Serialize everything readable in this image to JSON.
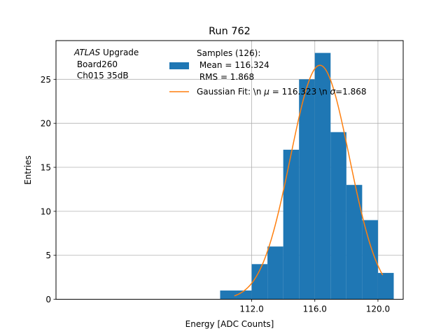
{
  "chart_data": {
    "type": "bar",
    "title": "Run 762",
    "xlabel": "Energy [ADC Counts]",
    "ylabel": "Entries",
    "xlim": [
      99.6,
      121.6
    ],
    "ylim": [
      0,
      29.4
    ],
    "xticks": [
      112,
      116,
      120
    ],
    "xtick_labels": [
      "112.0",
      "116.0",
      "120.0"
    ],
    "yticks": [
      0,
      5,
      10,
      15,
      20,
      25
    ],
    "grid": true,
    "histogram": {
      "name": "Samples (126):\n Mean = 116.324\n RMS = 1.868",
      "color": "#1f77b4",
      "bins": [
        {
          "x0": 110,
          "x1": 111,
          "count": 1
        },
        {
          "x0": 111,
          "x1": 112,
          "count": 1
        },
        {
          "x0": 112,
          "x1": 113,
          "count": 4
        },
        {
          "x0": 113,
          "x1": 114,
          "count": 6
        },
        {
          "x0": 114,
          "x1": 115,
          "count": 17
        },
        {
          "x0": 115,
          "x1": 116,
          "count": 25
        },
        {
          "x0": 116,
          "x1": 117,
          "count": 28
        },
        {
          "x0": 117,
          "x1": 118,
          "count": 19
        },
        {
          "x0": 118,
          "x1": 119,
          "count": 13
        },
        {
          "x0": 119,
          "x1": 120,
          "count": 9
        },
        {
          "x0": 120,
          "x1": 121,
          "count": 3
        }
      ]
    },
    "fit": {
      "name": "Gaussian Fit: \\n μ = 116.323 \\n σ=1.868",
      "color": "#ff7f0e",
      "mu": 116.323,
      "sigma": 1.868,
      "amplitude": 26.6,
      "x_range": [
        110.9,
        120.3
      ]
    },
    "annotation_lines": [
      "ATLAS Upgrade",
      " Board260",
      " Ch015 35dB"
    ],
    "legend": {
      "placement": "top-right",
      "hist_lines": [
        "Samples (126):",
        " Mean = 116.324",
        " RMS = 1.868"
      ],
      "fit_prefix": "Gaussian Fit: \\n ",
      "fit_mu": "μ",
      "fit_mid": " = 116.323 \\n ",
      "fit_sigma": "σ",
      "fit_suffix": "=1.868"
    }
  }
}
